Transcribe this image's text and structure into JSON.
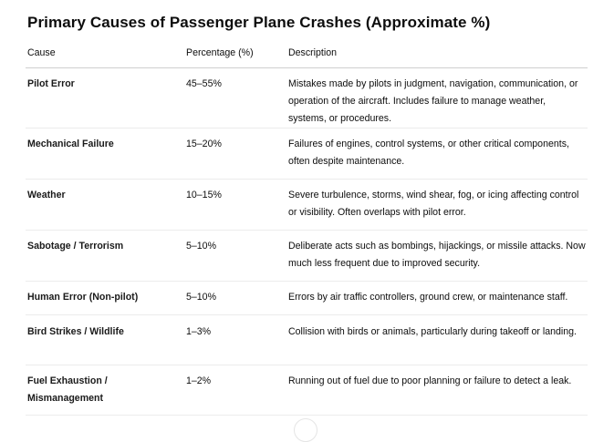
{
  "title": "Primary Causes of Passenger Plane Crashes (Approximate %)",
  "table": {
    "headers": {
      "cause": "Cause",
      "percentage": "Percentage (%)",
      "description": "Description"
    },
    "rows": [
      {
        "cause": "Pilot Error",
        "percentage": "45–55%",
        "description": "Mistakes made by pilots in judgment, navigation, communication, or operation of the aircraft. Includes failure to manage weather, systems, or procedures."
      },
      {
        "cause": "Mechanical Failure",
        "percentage": "15–20%",
        "description": "Failures of engines, control systems, or other critical components, often despite maintenance."
      },
      {
        "cause": "Weather",
        "percentage": "10–15%",
        "description": "Severe turbulence, storms, wind shear, fog, or icing affecting control or visibility. Often overlaps with pilot error."
      },
      {
        "cause": "Sabotage / Terrorism",
        "percentage": "5–10%",
        "description": "Deliberate acts such as bombings, hijackings, or missile attacks. Now much less frequent due to improved security."
      },
      {
        "cause": "Human Error (Non-pilot)",
        "percentage": "5–10%",
        "description": "Errors by air traffic controllers, ground crew, or maintenance staff."
      },
      {
        "cause": "Bird Strikes / Wildlife",
        "percentage": "1–3%",
        "description": "Collision with birds or animals, particularly during takeoff or landing."
      },
      {
        "cause": "Fuel Exhaustion / Mismanagement",
        "percentage": "1–2%",
        "description": "Running out of fuel due to poor planning or failure to detect a leak."
      }
    ]
  }
}
